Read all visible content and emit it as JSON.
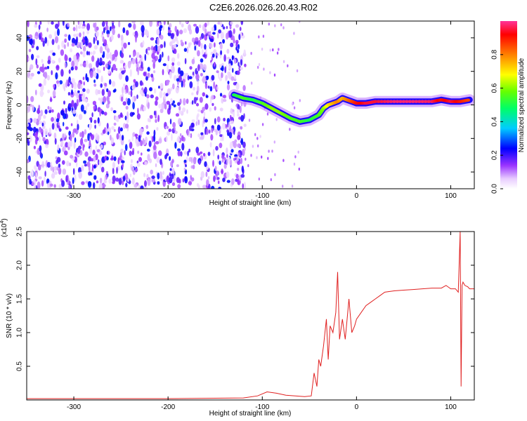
{
  "title": "C2E6.2026.026.20.43.R02",
  "chart_data": [
    {
      "type": "heatmap",
      "xlabel": "Height of straight line (km)",
      "ylabel": "Frequency (Hz)",
      "xlim": [
        -350,
        125
      ],
      "ylim": [
        -50,
        50
      ],
      "xticks": [
        -300,
        -200,
        -100,
        0,
        100
      ],
      "yticks": [
        -40,
        -20,
        0,
        20,
        40
      ],
      "colorbar": {
        "label": "Normalized spectral amplitude",
        "range": [
          0,
          1
        ],
        "ticks": [
          "0.0",
          "0.2",
          "0.4",
          "0.6",
          "0.8"
        ],
        "colors": [
          "#ffffff",
          "#cc99ff",
          "#6600cc",
          "#0000ff",
          "#00ffff",
          "#00ff00",
          "#ffff00",
          "#ff7f00",
          "#ff0000",
          "#ff3399"
        ]
      },
      "noise_region_x": [
        -350,
        -118
      ],
      "ridge": {
        "x": [
          -130,
          -120,
          -110,
          -100,
          -90,
          -80,
          -70,
          -60,
          -50,
          -40,
          -35,
          -30,
          -25,
          -20,
          -15,
          -10,
          -5,
          0,
          10,
          20,
          40,
          60,
          80,
          90,
          100,
          110,
          120
        ],
        "y": [
          6,
          4,
          3,
          1,
          -2,
          -5,
          -8,
          -10,
          -9,
          -6,
          -2,
          0,
          1,
          2,
          4,
          3,
          2,
          1,
          1,
          2,
          2,
          2,
          2,
          3,
          2,
          2,
          3
        ],
        "amplitude": [
          0.5,
          0.55,
          0.5,
          0.55,
          0.6,
          0.6,
          0.55,
          0.55,
          0.5,
          0.55,
          0.6,
          0.7,
          0.75,
          0.8,
          0.75,
          0.8,
          0.85,
          0.9,
          0.95,
          0.95,
          0.98,
          0.98,
          0.97,
          0.9,
          0.95,
          0.9,
          0.85
        ]
      }
    },
    {
      "type": "line",
      "xlabel": "Height of straight line (km)",
      "ylabel": "SNR (10 * v/v)",
      "yscale_label": "(x10",
      "yscale_exp": "4",
      "xlim": [
        -350,
        125
      ],
      "ylim": [
        0,
        2.5
      ],
      "xticks": [
        -300,
        -200,
        -100,
        0,
        100
      ],
      "yticks": [
        "0.5",
        "1.0",
        "1.5",
        "2.0",
        "2.5"
      ],
      "color": "#e02020",
      "series": [
        {
          "x": [
            -350,
            -300,
            -200,
            -120,
            -105,
            -95,
            -85,
            -75,
            -65,
            -55,
            -48,
            -45,
            -42,
            -40,
            -38,
            -35,
            -32,
            -30,
            -28,
            -25,
            -22,
            -20,
            -18,
            -15,
            -12,
            -10,
            -8,
            -5,
            -2,
            0,
            5,
            10,
            15,
            20,
            25,
            30,
            40,
            50,
            60,
            70,
            80,
            90,
            95,
            100,
            105,
            108,
            110,
            111,
            112,
            113,
            115,
            118,
            120,
            125
          ],
          "y": [
            0.02,
            0.02,
            0.02,
            0.03,
            0.06,
            0.12,
            0.1,
            0.07,
            0.06,
            0.05,
            0.06,
            0.4,
            0.2,
            0.6,
            0.5,
            0.8,
            1.2,
            0.6,
            1.1,
            1.0,
            1.3,
            1.9,
            0.9,
            1.2,
            0.9,
            1.2,
            1.5,
            1.0,
            1.1,
            1.2,
            1.3,
            1.4,
            1.45,
            1.5,
            1.55,
            1.6,
            1.62,
            1.63,
            1.64,
            1.65,
            1.66,
            1.66,
            1.7,
            1.65,
            1.65,
            1.6,
            2.5,
            0.2,
            1.7,
            1.75,
            1.7,
            1.68,
            1.65,
            1.65
          ]
        }
      ]
    }
  ]
}
